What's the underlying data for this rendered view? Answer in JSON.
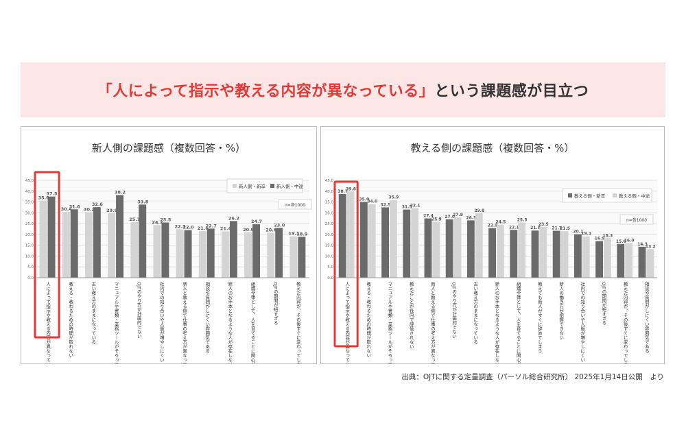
{
  "headline": {
    "highlight": "「人によって指示や教える内容が異なっている」",
    "rest": "という課題感が目立つ"
  },
  "source": "出典：OJTに関する定量調査（パーソル総合研究所） 2025年1月14日公開　より",
  "colors": {
    "accent": "#e53935",
    "banner_bg": "#fde6e6",
    "series_dark": "#6b6b6b",
    "series_light": "#d4d4d4"
  },
  "chart_data": [
    {
      "type": "bar",
      "title": "新人側の課題感（複数回答・%）",
      "note": "n=各1000",
      "ylim": [
        0,
        45
      ],
      "yticks": [
        "0.0",
        "5.0",
        "10.0",
        "15.0",
        "20.0",
        "25.0",
        "30.0",
        "35.0",
        "40.0",
        "45.0"
      ],
      "categories": [
        "人によって指示や教える内容が異なっている",
        "教える・教わるための時間が取れない",
        "古い教え方のままになっている",
        "マニュアルや書類・業務ツールがそろっていない",
        "OJTのやり方が計画的でない",
        "社内での知り合いや人脈が増やしにくい",
        "新人と教える側で仕事の考え方が異なっている",
        "相談や質問がしにくい雰囲気である",
        "新人のお手本となるような人が存在しない",
        "組織全体として、人を育てることに関心が無い",
        "OJTの期間が短すぎる",
        "教えた内容が、その後すぐに変わってしまう"
      ],
      "series": [
        {
          "name": "新人側・新卒",
          "values": [
            35.6,
            30.4,
            30.2,
            29.8,
            25.7,
            24.3,
            22.3,
            21.6,
            21.4,
            20.9,
            20.8,
            19.1
          ]
        },
        {
          "name": "新人側・中途",
          "values": [
            37.5,
            31.6,
            32.6,
            38.2,
            33.8,
            25.5,
            22.0,
            22.7,
            26.2,
            24.7,
            23.0,
            18.9
          ]
        }
      ],
      "highlight_index": 0
    },
    {
      "type": "bar",
      "title": "教える側の課題感（複数回答・%）",
      "note": "n=各1000",
      "ylim": [
        0,
        45
      ],
      "yticks": [
        "0.0",
        "5.0",
        "10.0",
        "15.0",
        "20.0",
        "25.0",
        "30.0",
        "35.0",
        "40.0",
        "45.0"
      ],
      "categories": [
        "人によって指示や教える内容が異なっている",
        "教える・教わるための時間が取れない",
        "マニュアルや書類・業務ツールがそろっていない",
        "教えたことが社内で評価されない",
        "新人と教える側で仕事の考え方が異なっている",
        "OJTのやり方が計画的でない",
        "古い教え方のままになっている",
        "新人のお手本となるような人が存在しない",
        "組織全体として、人を育てることに関心が無い",
        "教えても新人がすぐに辞めてしまう",
        "新人の働き方が把握できない",
        "社内での知り合いや人脈が増やしにくい",
        "OJTの期間が短すぎる",
        "教えた内容が、その後すぐに変わってしまう",
        "相談や質問がしにくい雰囲気である"
      ],
      "series": [
        {
          "name": "教える側・新卒",
          "values": [
            38.7,
            35.0,
            32.5,
            31.5,
            27.4,
            27.0,
            26.5,
            22.9,
            22.1,
            21.8,
            21.7,
            20.1,
            16.9,
            15.6,
            14.3
          ]
        },
        {
          "name": "教える側・中途",
          "values": [
            39.8,
            34.0,
            35.9,
            32.1,
            25.9,
            27.9,
            29.8,
            24.5,
            25.5,
            23.5,
            21.5,
            19.1,
            18.3,
            16.0,
            13.2
          ]
        }
      ],
      "highlight_index": 0
    }
  ]
}
